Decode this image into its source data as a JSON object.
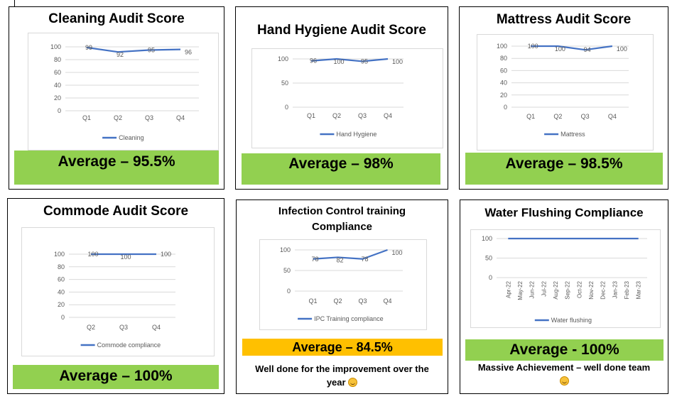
{
  "colors": {
    "line": "#4472c4",
    "green": "#92d050",
    "amber": "#ffc000",
    "grid": "#d9d9d9",
    "axis_text": "#595959"
  },
  "panels": {
    "cleaning": {
      "title": "Cleaning Audit Score",
      "average": "Average – 95.5%",
      "chart_data": {
        "type": "line",
        "categories": [
          "Q1",
          "Q2",
          "Q3",
          "Q4"
        ],
        "series": [
          {
            "name": "Cleaning",
            "values": [
              99,
              92,
              95,
              96
            ]
          }
        ],
        "data_labels": [
          "99",
          "92",
          "95",
          "96"
        ],
        "ylim": [
          0,
          100
        ],
        "yticks": [
          0,
          20,
          40,
          60,
          80,
          100
        ],
        "grid": true,
        "legend": "bottom"
      }
    },
    "hand": {
      "title": "Hand Hygiene Audit Score",
      "average": "Average – 98%",
      "chart_data": {
        "type": "line",
        "categories": [
          "Q1",
          "Q2",
          "Q3",
          "Q4"
        ],
        "series": [
          {
            "name": "Hand Hygiene",
            "values": [
              96,
              100,
              95,
              100
            ]
          }
        ],
        "data_labels": [
          "96",
          "100",
          "95",
          "100"
        ],
        "ylim": [
          0,
          100
        ],
        "yticks": [
          0,
          50,
          100
        ],
        "grid": true,
        "legend": "bottom"
      }
    },
    "mattress": {
      "title": "Mattress Audit Score",
      "average": "Average – 98.5%",
      "chart_data": {
        "type": "line",
        "categories": [
          "Q1",
          "Q2",
          "Q3",
          "Q4"
        ],
        "series": [
          {
            "name": "Mattress",
            "values": [
              100,
              100,
              94,
              100
            ]
          }
        ],
        "data_labels": [
          "100",
          "100",
          "94",
          "100"
        ],
        "ylim": [
          0,
          100
        ],
        "yticks": [
          0,
          20,
          40,
          60,
          80,
          100
        ],
        "grid": true,
        "legend": "bottom"
      }
    },
    "commode": {
      "title": "Commode Audit Score",
      "average": "Average – 100%",
      "chart_data": {
        "type": "line",
        "categories": [
          "Q2",
          "Q3",
          "Q4"
        ],
        "series": [
          {
            "name": "Commode compliance",
            "values": [
              100,
              100,
              100
            ]
          }
        ],
        "data_labels": [
          "100",
          "100",
          "100"
        ],
        "ylim": [
          0,
          100
        ],
        "yticks": [
          0,
          20,
          40,
          60,
          80,
          100
        ],
        "grid": true,
        "legend": "bottom"
      }
    },
    "ipc": {
      "title_line1": "Infection Control training",
      "title_line2": "Compliance",
      "average": "Average – 84.5%",
      "note_line1": "Well done for the improvement over the",
      "note_line2": "year",
      "chart_data": {
        "type": "line",
        "categories": [
          "Q1",
          "Q2",
          "Q3",
          "Q4"
        ],
        "series": [
          {
            "name": "IPC Training compliance",
            "values": [
              78,
              82,
              78,
              100
            ]
          }
        ],
        "data_labels": [
          "78",
          "82",
          "78",
          "100"
        ],
        "ylim": [
          0,
          100
        ],
        "yticks": [
          0,
          50,
          100
        ],
        "grid": true,
        "legend": "bottom"
      }
    },
    "water": {
      "title": "Water Flushing Compliance",
      "average": "Average - 100%",
      "note_line1": "Massive Achievement – well done team",
      "chart_data": {
        "type": "line",
        "categories": [
          "Apr-22",
          "May-22",
          "Jun-22",
          "Jul-22",
          "Aug-22",
          "Sep-22",
          "Oct-22",
          "Nov-22",
          "Dec-22",
          "Jan-23",
          "Feb-23",
          "Mar-23"
        ],
        "series": [
          {
            "name": "Water flushing",
            "values": [
              100,
              100,
              100,
              100,
              100,
              100,
              100,
              100,
              100,
              100,
              100,
              100
            ]
          }
        ],
        "data_labels": [],
        "ylim": [
          0,
          100
        ],
        "yticks": [
          0,
          50,
          100
        ],
        "grid": true,
        "legend": "bottom"
      }
    }
  }
}
